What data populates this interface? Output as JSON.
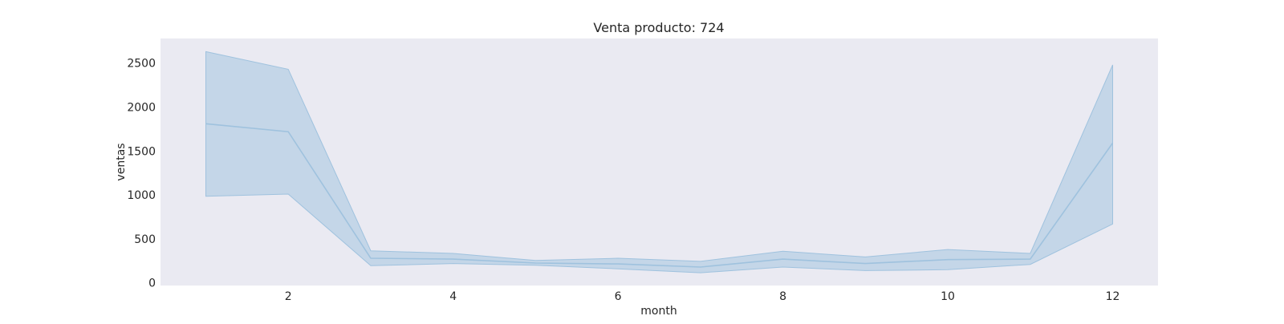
{
  "chart_data": {
    "type": "line",
    "title": "Venta producto: 724",
    "xlabel": "month",
    "ylabel": "ventas",
    "x": [
      1,
      2,
      3,
      4,
      5,
      6,
      7,
      8,
      9,
      10,
      11,
      12
    ],
    "series": [
      {
        "mean": [
          1810,
          1720,
          280,
          270,
          225,
          215,
          180,
          270,
          220,
          265,
          270,
          1590
        ],
        "ci_lower": [
          985,
          1010,
          195,
          220,
          200,
          160,
          115,
          180,
          140,
          150,
          210,
          670
        ],
        "ci_upper": [
          2630,
          2430,
          365,
          335,
          255,
          280,
          245,
          360,
          295,
          380,
          335,
          2480
        ]
      }
    ],
    "xlim": [
      0.45,
      12.55
    ],
    "ylim": [
      -30,
      2780
    ],
    "xticks": [
      2,
      4,
      6,
      8,
      10,
      12
    ],
    "yticks": [
      0,
      500,
      1000,
      1500,
      2000,
      2500
    ],
    "grid": false,
    "colors": {
      "plot_background": "#eaeaf2",
      "line": "#9fc2de",
      "band": "#b7cfe4"
    }
  }
}
